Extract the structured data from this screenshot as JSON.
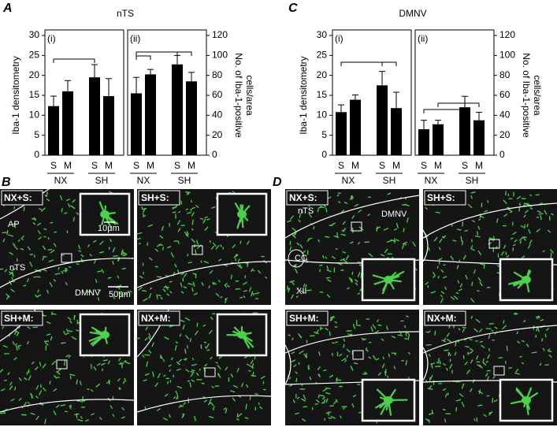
{
  "chart_data": [
    {
      "type": "bar",
      "panel": "A",
      "title": "nTS",
      "subtitle": "(i)",
      "y_label": "Iba-1 densitometry",
      "categories": [
        "S",
        "M",
        "S",
        "M"
      ],
      "groups": [
        "NX",
        "SH"
      ],
      "values": [
        12.3,
        16,
        19.5,
        14.8
      ],
      "errors": [
        2.5,
        2.7,
        3.2,
        4.4
      ],
      "color": "#000000",
      "ylim": [
        0,
        30
      ],
      "yticks": [
        0,
        5,
        10,
        15,
        20,
        25,
        30
      ]
    },
    {
      "type": "bar",
      "subtitle": "(ii)",
      "y2_label": [
        "No. of Iba-1-positive",
        "cells/area"
      ],
      "categories": [
        "S",
        "M",
        "S",
        "M"
      ],
      "groups": [
        "NX",
        "SH"
      ],
      "values": [
        62,
        81,
        91,
        74
      ],
      "errors": [
        16,
        5,
        9,
        9
      ],
      "color": "#000000",
      "y2lim": [
        0,
        120
      ],
      "y2ticks": [
        0,
        20,
        40,
        60,
        80,
        100,
        120
      ]
    },
    {
      "type": "bar",
      "panel": "C",
      "title": "DMNV",
      "subtitle": "(i)",
      "y_label": "Iba-1 densitometry",
      "categories": [
        "S",
        "M",
        "S",
        "M"
      ],
      "groups": [
        "NX",
        "SH"
      ],
      "values": [
        10.8,
        13.9,
        17.5,
        11.8
      ],
      "errors": [
        1.8,
        1.2,
        3.5,
        4
      ],
      "color": "#000000",
      "ylim": [
        0,
        30
      ],
      "yticks": [
        0,
        5,
        10,
        15,
        20,
        25,
        30
      ]
    },
    {
      "type": "bar",
      "subtitle": "(ii)",
      "y2_label": [
        "No. of Iba-1-positive",
        "cells/area"
      ],
      "categories": [
        "S",
        "M",
        "S",
        "M"
      ],
      "groups": [
        "NX",
        "SH"
      ],
      "values": [
        26,
        31,
        48,
        35
      ],
      "errors": [
        9,
        4,
        11,
        8
      ],
      "color": "#000000",
      "y2lim": [
        0,
        120
      ],
      "y2ticks": [
        0,
        20,
        40,
        60,
        80,
        100,
        120
      ]
    }
  ],
  "micrographs": [
    {
      "panel": "B",
      "images": [
        {
          "label": "NX+S:",
          "annotations": [
            "AP",
            "nTS",
            "DMNV"
          ],
          "scale_bars": [
            "10μm",
            "50μm"
          ]
        },
        {
          "label": "SH+S:"
        },
        {
          "label": "SH+M:"
        },
        {
          "label": "NX+M:"
        }
      ]
    },
    {
      "panel": "D",
      "images": [
        {
          "label": "NX+S:",
          "annotations": [
            "nTS",
            "DMNV",
            "CC",
            "XII"
          ]
        },
        {
          "label": "SH+S:"
        },
        {
          "label": "SH+M:"
        },
        {
          "label": "NX+M:"
        }
      ]
    }
  ]
}
